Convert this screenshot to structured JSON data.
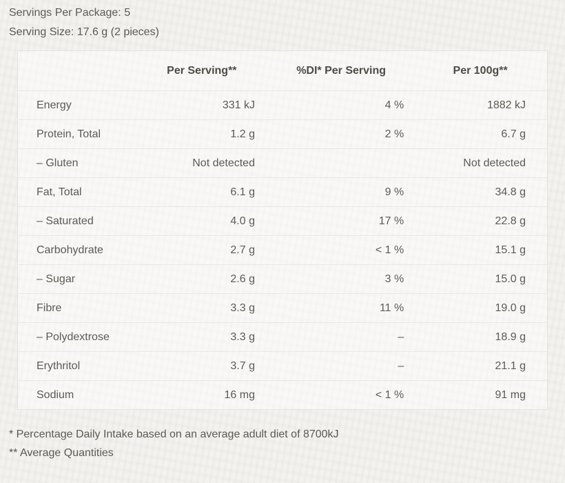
{
  "colors": {
    "page_background": "#f1f0ed",
    "table_background": "#f6f5f2",
    "table_border": "#e3e2dd",
    "row_divider": "#e8e7e2",
    "body_text": "#5d5a53",
    "header_text": "#4d4b45"
  },
  "intro": {
    "servings_per_package": "Servings Per Package: 5",
    "serving_size": "Serving Size: 17.6 g (2 pieces)"
  },
  "table": {
    "columns": [
      "Per Serving**",
      "%DI* Per Serving",
      "Per 100g**"
    ],
    "rows": [
      {
        "label": "Energy",
        "per_serving": "331 kJ",
        "di": "4 %",
        "per_100g": "1882 kJ"
      },
      {
        "label": "Protein, Total",
        "per_serving": "1.2 g",
        "di": "2 %",
        "per_100g": "6.7 g"
      },
      {
        "label": "– Gluten",
        "per_serving": "Not detected",
        "di": "",
        "per_100g": "Not detected"
      },
      {
        "label": "Fat, Total",
        "per_serving": "6.1 g",
        "di": "9 %",
        "per_100g": "34.8 g"
      },
      {
        "label": "– Saturated",
        "per_serving": "4.0 g",
        "di": "17 %",
        "per_100g": "22.8 g"
      },
      {
        "label": "Carbohydrate",
        "per_serving": "2.7 g",
        "di": "< 1 %",
        "per_100g": "15.1 g"
      },
      {
        "label": "– Sugar",
        "per_serving": "2.6 g",
        "di": "3 %",
        "per_100g": "15.0 g"
      },
      {
        "label": "Fibre",
        "per_serving": "3.3 g",
        "di": "11 %",
        "per_100g": "19.0 g"
      },
      {
        "label": "– Polydextrose",
        "per_serving": "3.3 g",
        "di": "–",
        "per_100g": "18.9 g"
      },
      {
        "label": "Erythritol",
        "per_serving": "3.7 g",
        "di": "–",
        "per_100g": "21.1 g"
      },
      {
        "label": "Sodium",
        "per_serving": "16 mg",
        "di": "< 1 %",
        "per_100g": "91 mg"
      }
    ]
  },
  "footnotes": [
    "* Percentage Daily Intake based on an average adult diet of 8700kJ",
    "** Average Quantities"
  ]
}
